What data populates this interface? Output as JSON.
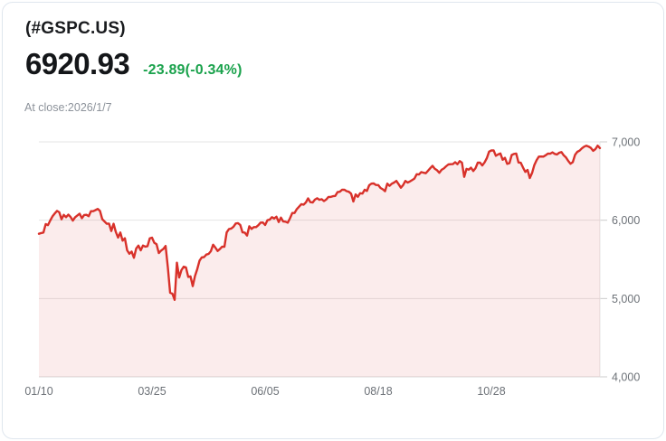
{
  "header": {
    "symbol": "(#GSPC.US)",
    "price": "6920.93",
    "change": "-23.89(-0.34%)",
    "as_of": "At close:2026/1/7"
  },
  "colors": {
    "change_green": "#1aa24c",
    "line_red": "#d8312a",
    "area_fill": "rgba(216,49,42,0.09)",
    "grid": "#e5e5e5",
    "baseline": "#d8d8d8",
    "tick": "#cccccc",
    "axis_text": "#6c7177"
  },
  "chart_data": {
    "type": "area",
    "title": "#GSPC.US one-year price line",
    "ylim": [
      4000,
      7000
    ],
    "grid": "horizontal",
    "legend_position": "none",
    "last_close": 6920.93,
    "y_ticks": [
      {
        "value": 7000,
        "label": "7,000"
      },
      {
        "value": 6000,
        "label": "6,000"
      },
      {
        "value": 5000,
        "label": "5,000"
      },
      {
        "value": 4000,
        "label": "4,000"
      }
    ],
    "x_ticks": [
      {
        "label": "01/10",
        "index": 0
      },
      {
        "label": "03/25",
        "index": 50
      },
      {
        "label": "06/05",
        "index": 100
      },
      {
        "label": "08/18",
        "index": 150
      },
      {
        "label": "10/28",
        "index": 200
      }
    ],
    "values": [
      5827,
      5836,
      5843,
      5950,
      5937,
      5996,
      6049,
      6086,
      6119,
      6101,
      6012,
      6068,
      6039,
      6071,
      6041,
      5995,
      6038,
      6061,
      6083,
      6026,
      6066,
      6069,
      6052,
      6115,
      6115,
      6129,
      6144,
      6118,
      6013,
      5983,
      5955,
      5956,
      5862,
      5955,
      5850,
      5778,
      5843,
      5739,
      5770,
      5615,
      5572,
      5599,
      5521,
      5639,
      5675,
      5615,
      5676,
      5663,
      5668,
      5768,
      5777,
      5712,
      5693,
      5581,
      5612,
      5633,
      5671,
      5396,
      5074,
      5062,
      4983,
      5457,
      5268,
      5363,
      5406,
      5397,
      5276,
      5283,
      5158,
      5288,
      5376,
      5484,
      5525,
      5529,
      5561,
      5569,
      5604,
      5687,
      5650,
      5607,
      5631,
      5663,
      5660,
      5844,
      5887,
      5893,
      5916,
      5958,
      5963,
      5940,
      5845,
      5842,
      5803,
      5922,
      5889,
      5912,
      5912,
      5936,
      5970,
      5971,
      5939,
      6000,
      6006,
      6039,
      6022,
      6045,
      5977,
      6033,
      5983,
      5981,
      5968,
      6025,
      6092,
      6092,
      6141,
      6173,
      6205,
      6198,
      6227,
      6279,
      6230,
      6226,
      6263,
      6280,
      6260,
      6269,
      6244,
      6264,
      6297,
      6297,
      6306,
      6310,
      6359,
      6363,
      6389,
      6390,
      6371,
      6363,
      6339,
      6238,
      6330,
      6299,
      6345,
      6340,
      6389,
      6373,
      6446,
      6467,
      6469,
      6450,
      6449,
      6411,
      6395,
      6370,
      6467,
      6439,
      6466,
      6481,
      6502,
      6460,
      6415,
      6448,
      6502,
      6481,
      6495,
      6513,
      6532,
      6587,
      6584,
      6615,
      6606,
      6600,
      6632,
      6664,
      6694,
      6656,
      6638,
      6605,
      6644,
      6661,
      6688,
      6711,
      6715,
      6716,
      6740,
      6715,
      6754,
      6735,
      6553,
      6655,
      6645,
      6671,
      6629,
      6664,
      6735,
      6735,
      6699,
      6738,
      6792,
      6875,
      6890,
      6891,
      6822,
      6840,
      6852,
      6772,
      6796,
      6720,
      6729,
      6833,
      6847,
      6851,
      6737,
      6734,
      6672,
      6617,
      6642,
      6539,
      6603,
      6705,
      6766,
      6812,
      6813,
      6812,
      6829,
      6850,
      6849,
      6866,
      6846,
      6840,
      6861,
      6870,
      6828,
      6800,
      6756,
      6721,
      6741,
      6835,
      6873,
      6888,
      6917,
      6939,
      6952,
      6940,
      6923,
      6886,
      6908,
      6952,
      6920.93
    ]
  }
}
